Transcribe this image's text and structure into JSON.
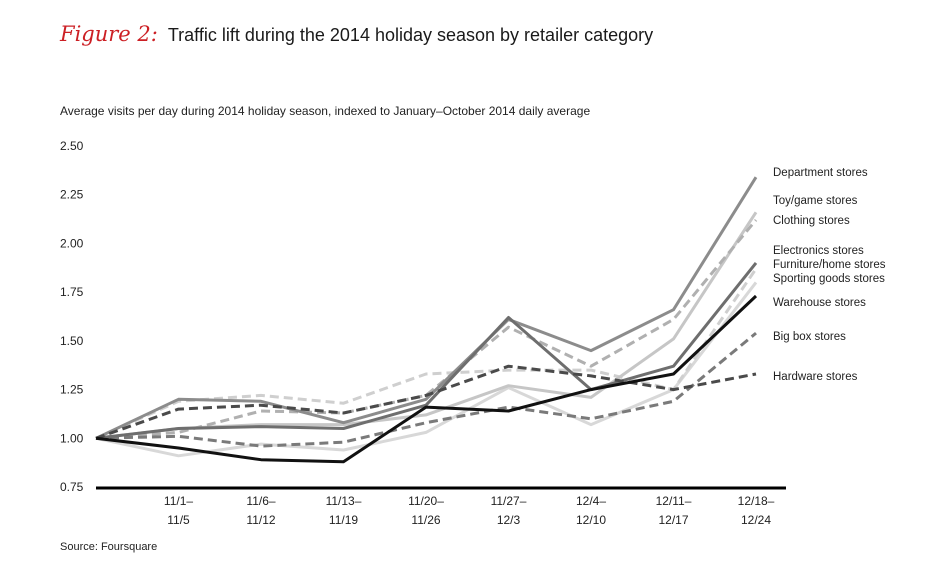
{
  "figure": {
    "label": "Figure 2:",
    "title": "Traffic lift during the 2014 holiday season by retailer category",
    "subtitle": "Average visits per day during 2014 holiday season, indexed to January–October 2014 daily average",
    "source": "Source: Foursquare"
  },
  "colors": {
    "figure_label": "#cc1f24"
  },
  "chart_data": {
    "type": "line",
    "title": "Traffic lift during the 2014 holiday season by retailer category",
    "ylabel": "Average visits per day during 2014 holiday season, indexed to January–October 2014 daily average",
    "xlabel": "",
    "ylim": [
      0.75,
      2.5
    ],
    "yticks": [
      "2.50",
      "2.25",
      "2.00",
      "1.75",
      "1.50",
      "1.25",
      "1.00",
      "0.75"
    ],
    "categories": [
      [
        "",
        ""
      ],
      [
        "11/1–",
        "11/5"
      ],
      [
        "11/6–",
        "11/12"
      ],
      [
        "11/13–",
        "11/19"
      ],
      [
        "11/20–",
        "11/26"
      ],
      [
        "11/27–",
        "12/3"
      ],
      [
        "12/4–",
        "12/10"
      ],
      [
        "12/11–",
        "12/17"
      ],
      [
        "12/18–",
        "12/24"
      ]
    ],
    "grid": false,
    "legend": "inline labels at right end of lines",
    "series": [
      {
        "name": "Department stores",
        "color": "#8c8c8c",
        "dash": "solid",
        "values": [
          1.0,
          1.2,
          1.19,
          1.08,
          1.2,
          1.61,
          1.45,
          1.66,
          2.34
        ]
      },
      {
        "name": "Toy/game stores",
        "color": "#b0b0b0",
        "dash": "dashed",
        "values": [
          1.0,
          1.03,
          1.14,
          1.13,
          1.22,
          1.57,
          1.37,
          1.61,
          2.12
        ]
      },
      {
        "name": "Clothing stores",
        "color": "#c6c6c6",
        "dash": "solid",
        "values": [
          1.0,
          1.05,
          1.07,
          1.07,
          1.12,
          1.27,
          1.21,
          1.51,
          2.16
        ]
      },
      {
        "name": "Electronics stores",
        "color": "#6e6e6e",
        "dash": "solid",
        "values": [
          1.0,
          1.05,
          1.06,
          1.05,
          1.17,
          1.62,
          1.25,
          1.37,
          1.9
        ]
      },
      {
        "name": "Furniture/home stores",
        "color": "#cfcfcf",
        "dash": "dashed",
        "values": [
          1.0,
          1.19,
          1.22,
          1.18,
          1.33,
          1.35,
          1.35,
          1.25,
          1.87
        ]
      },
      {
        "name": "Sporting goods stores",
        "color": "#d8d8d8",
        "dash": "solid",
        "values": [
          1.0,
          0.91,
          0.97,
          0.94,
          1.03,
          1.26,
          1.07,
          1.25,
          1.8
        ]
      },
      {
        "name": "Warehouse stores",
        "color": "#111111",
        "dash": "solid",
        "values": [
          1.0,
          0.95,
          0.89,
          0.88,
          1.16,
          1.14,
          1.25,
          1.33,
          1.73
        ]
      },
      {
        "name": "Big box stores",
        "color": "#7a7a7a",
        "dash": "dashed",
        "values": [
          1.0,
          1.01,
          0.96,
          0.98,
          1.08,
          1.16,
          1.1,
          1.19,
          1.54
        ]
      },
      {
        "name": "Hardware stores",
        "color": "#4a4a4a",
        "dash": "dashed",
        "values": [
          1.0,
          1.15,
          1.17,
          1.13,
          1.22,
          1.37,
          1.32,
          1.25,
          1.33
        ]
      }
    ]
  }
}
